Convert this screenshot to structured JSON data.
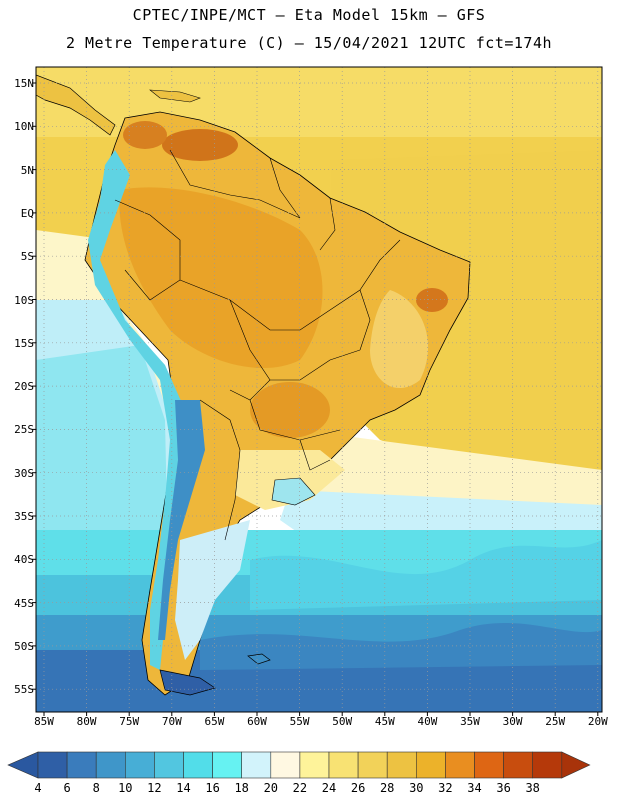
{
  "header": {
    "line1": "CPTEC/INPE/MCT –  Eta Model 15km – GFS",
    "line2": "2 Metre Temperature (C) – 15/04/2021 12UTC fct=174h"
  },
  "map": {
    "lat_labels": [
      "15N",
      "10N",
      "5N",
      "EQ",
      "5S",
      "10S",
      "15S",
      "20S",
      "25S",
      "30S",
      "35S",
      "40S",
      "45S",
      "50S",
      "55S"
    ],
    "lon_labels": [
      "85W",
      "80W",
      "75W",
      "70W",
      "65W",
      "60W",
      "55W",
      "50W",
      "45W",
      "40W",
      "35W",
      "30W",
      "25W",
      "20W"
    ]
  },
  "colorbar": {
    "labels": [
      "4",
      "6",
      "8",
      "10",
      "12",
      "14",
      "16",
      "18",
      "20",
      "22",
      "24",
      "26",
      "28",
      "30",
      "32",
      "34",
      "36",
      "38"
    ],
    "colors": [
      "#2f5fa6",
      "#3a7cbc",
      "#3f96c9",
      "#47aed6",
      "#52c6e0",
      "#52dde9",
      "#66f2f2",
      "#d2f3fb",
      "#fff8e2",
      "#fef39a",
      "#f8e273",
      "#f2d259",
      "#edc242",
      "#ecb22a",
      "#e98e20",
      "#de6614",
      "#c84d0e",
      "#b5390a"
    ],
    "low_color": "#2a58a0",
    "high_color": "#a8330a"
  }
}
